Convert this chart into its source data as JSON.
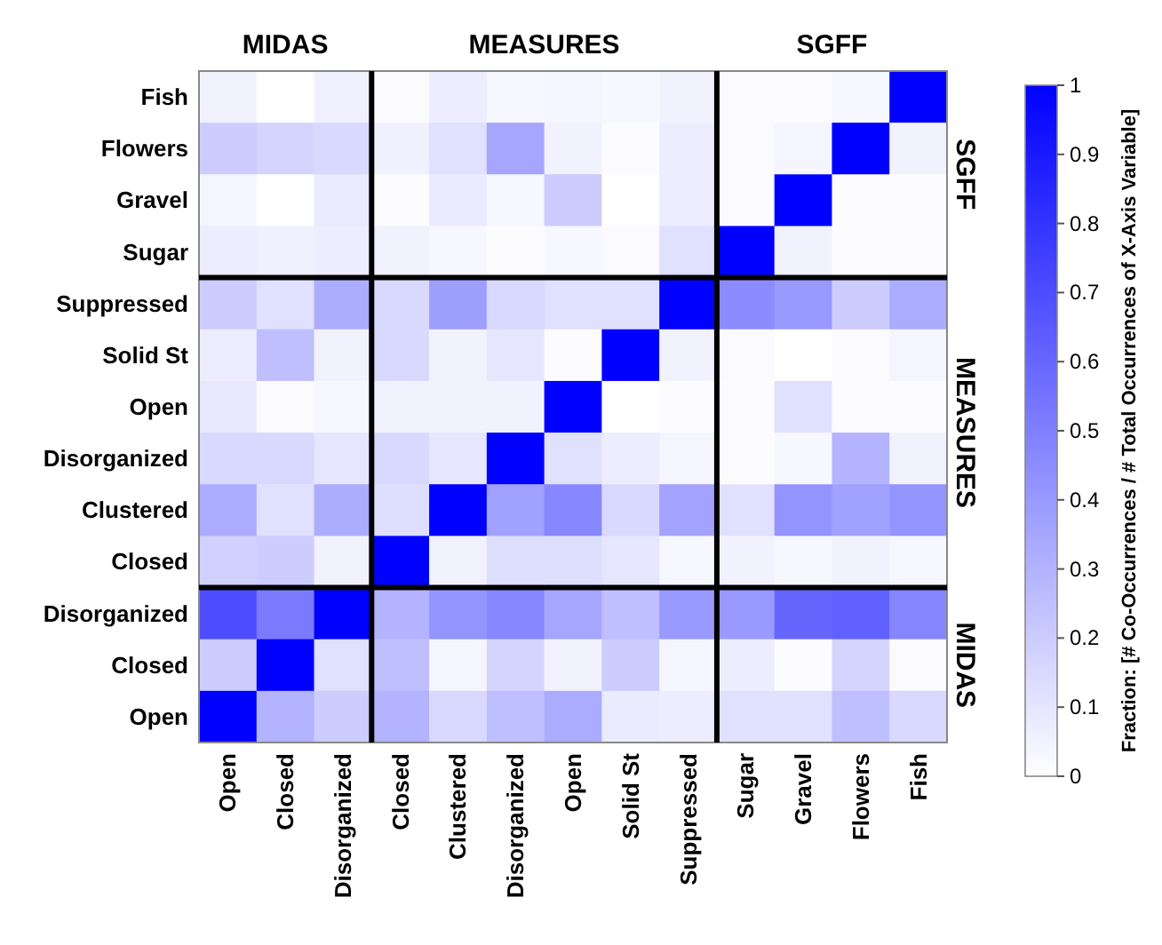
{
  "chart_data": {
    "type": "heatmap",
    "categories": [
      "Open",
      "Closed",
      "Disorganized",
      "Closed",
      "Clustered",
      "Disorganized",
      "Open",
      "Solid St",
      "Suppressed",
      "Sugar",
      "Gravel",
      "Flowers",
      "Fish"
    ],
    "y_categories": [
      "Fish",
      "Flowers",
      "Gravel",
      "Sugar",
      "Suppressed",
      "Solid St",
      "Open",
      "Disorganized",
      "Clustered",
      "Closed",
      "Disorganized",
      "Closed",
      "Open"
    ],
    "cells": [
      [
        0.05,
        0,
        0.06,
        0.02,
        0.07,
        0.03,
        0.04,
        0.03,
        0.05,
        0.02,
        0.02,
        0.03,
        1
      ],
      [
        0.2,
        0.17,
        0.15,
        0.06,
        0.12,
        0.35,
        0.05,
        0.02,
        0.07,
        0.02,
        0.04,
        1,
        0.05
      ],
      [
        0.04,
        0,
        0.08,
        0.01,
        0.08,
        0.03,
        0.2,
        0,
        0.07,
        0.02,
        1,
        0.01,
        0.01
      ],
      [
        0.07,
        0.06,
        0.07,
        0.05,
        0.03,
        0.01,
        0.03,
        0.02,
        0.12,
        1,
        0.05,
        0.01,
        0.01
      ],
      [
        0.2,
        0.12,
        0.32,
        0.15,
        0.38,
        0.15,
        0.12,
        0.12,
        1,
        0.45,
        0.4,
        0.2,
        0.33
      ],
      [
        0.07,
        0.25,
        0.05,
        0.15,
        0.05,
        0.1,
        0.01,
        1,
        0.05,
        0.02,
        0,
        0.02,
        0.04
      ],
      [
        0.09,
        0.02,
        0.03,
        0.05,
        0.05,
        0.05,
        1,
        0,
        0.01,
        0.01,
        0.12,
        0.01,
        0.01
      ],
      [
        0.15,
        0.15,
        0.1,
        0.15,
        0.1,
        1,
        0.12,
        0.07,
        0.04,
        0.01,
        0.03,
        0.3,
        0.05
      ],
      [
        0.33,
        0.12,
        0.32,
        0.13,
        1,
        0.37,
        0.47,
        0.15,
        0.36,
        0.12,
        0.42,
        0.37,
        0.42
      ],
      [
        0.18,
        0.2,
        0.05,
        1,
        0.05,
        0.13,
        0.13,
        0.1,
        0.03,
        0.05,
        0.03,
        0.05,
        0.03
      ],
      [
        0.7,
        0.52,
        1,
        0.3,
        0.42,
        0.47,
        0.35,
        0.25,
        0.4,
        0.4,
        0.6,
        0.62,
        0.48
      ],
      [
        0.2,
        1,
        0.12,
        0.25,
        0.04,
        0.17,
        0.05,
        0.2,
        0.04,
        0.07,
        0.01,
        0.17,
        0.02
      ],
      [
        1,
        0.3,
        0.2,
        0.3,
        0.15,
        0.25,
        0.33,
        0.08,
        0.07,
        0.12,
        0.12,
        0.25,
        0.15
      ]
    ],
    "color": "#0000ff",
    "clim": [
      0,
      1
    ],
    "cticks": [
      0,
      0.1,
      0.2,
      0.3,
      0.4,
      0.5,
      0.6,
      0.7,
      0.8,
      0.9,
      1
    ],
    "clabel": "Fraction: [# Co-Occurrences / # Total Occurrences of X-Axis Variable]",
    "annotations": [
      "MIDAS",
      "MEASURES",
      "SGFF",
      "SGFF",
      "MEASURES",
      "MIDAS"
    ]
  }
}
